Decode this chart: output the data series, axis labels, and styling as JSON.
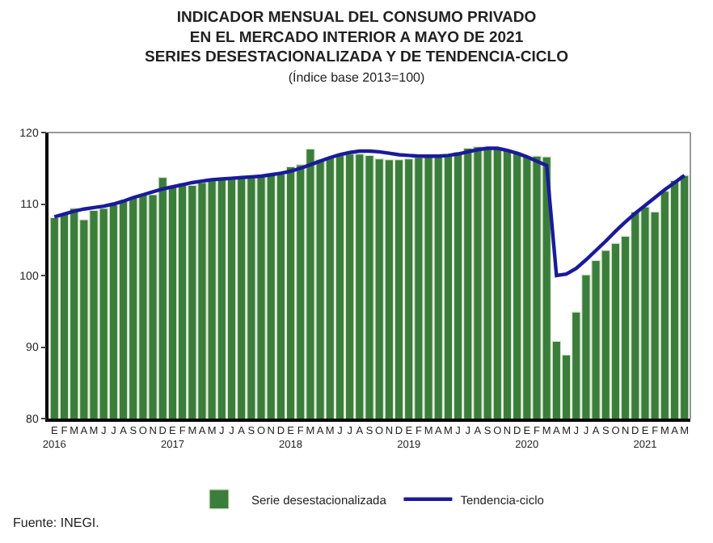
{
  "chart_data": {
    "type": "bar",
    "title": "INDICADOR MENSUAL DEL CONSUMO PRIVADO\nEN EL MERCADO INTERIOR A MAYO DE 2021\nSERIES DESESTACIONALIZADA Y DE TENDENCIA-CICLO",
    "subtitle": "(Índice base 2013=100)",
    "categories": [
      "E\n2016",
      "F",
      "M",
      "A",
      "M",
      "J",
      "J",
      "A",
      "S",
      "O",
      "N",
      "D",
      "E\n2017",
      "F",
      "M",
      "A",
      "M",
      "J",
      "J",
      "A",
      "S",
      "O",
      "N",
      "D",
      "E\n2018",
      "F",
      "M",
      "A",
      "M",
      "J",
      "J",
      "A",
      "S",
      "O",
      "N",
      "D",
      "E\n2019",
      "F",
      "M",
      "A",
      "M",
      "J",
      "J",
      "A",
      "S",
      "O",
      "N",
      "D",
      "E\n2020",
      "F",
      "M",
      "A",
      "M",
      "J",
      "J",
      "A",
      "S",
      "O",
      "N",
      "D",
      "E\n2021",
      "F",
      "M",
      "A",
      "M"
    ],
    "series": [
      {
        "name": "Serie desestacionalizada",
        "color": "#3b7d3b",
        "values": [
          108.1,
          108.6,
          109.4,
          107.8,
          109.1,
          109.4,
          109.9,
          110.4,
          110.9,
          111.4,
          111.3,
          113.7,
          112.5,
          112.9,
          112.6,
          113.0,
          113.3,
          113.5,
          113.7,
          113.7,
          113.9,
          114.0,
          114.2,
          114.2,
          115.2,
          115.5,
          117.7,
          116.2,
          116.5,
          116.8,
          117.0,
          117.0,
          116.8,
          116.3,
          116.2,
          116.2,
          116.3,
          116.5,
          116.8,
          116.6,
          116.8,
          117.2,
          117.8,
          118.0,
          118.0,
          117.8,
          117.5,
          117.2,
          116.6,
          116.7,
          116.6,
          90.8,
          88.9,
          94.9,
          100.1,
          102.1,
          103.5,
          104.5,
          105.5,
          108.9,
          109.6,
          108.9,
          111.8,
          113.3,
          114.0
        ]
      },
      {
        "name": "Tendencia-ciclo",
        "type": "line",
        "color": "#1a1a9c",
        "values": [
          108.2,
          108.6,
          109.0,
          109.3,
          109.5,
          109.7,
          110.0,
          110.4,
          110.9,
          111.3,
          111.7,
          112.1,
          112.4,
          112.7,
          113.0,
          113.2,
          113.4,
          113.5,
          113.6,
          113.7,
          113.8,
          113.9,
          114.1,
          114.3,
          114.6,
          115.0,
          115.5,
          116.0,
          116.5,
          116.9,
          117.2,
          117.4,
          117.4,
          117.3,
          117.1,
          116.9,
          116.8,
          116.7,
          116.7,
          116.7,
          116.8,
          117.0,
          117.3,
          117.6,
          117.8,
          117.8,
          117.5,
          117.1,
          116.6,
          116.0,
          115.4,
          100.0,
          100.2,
          101.0,
          102.2,
          103.5,
          104.8,
          106.2,
          107.5,
          108.7,
          109.8,
          110.9,
          112.0,
          113.0,
          114.0
        ]
      }
    ],
    "ylim": [
      80,
      120
    ],
    "yticks": [
      80,
      90,
      100,
      110,
      120
    ],
    "legend": "bottom",
    "annotations": [
      "Fuente: INEGI."
    ]
  }
}
